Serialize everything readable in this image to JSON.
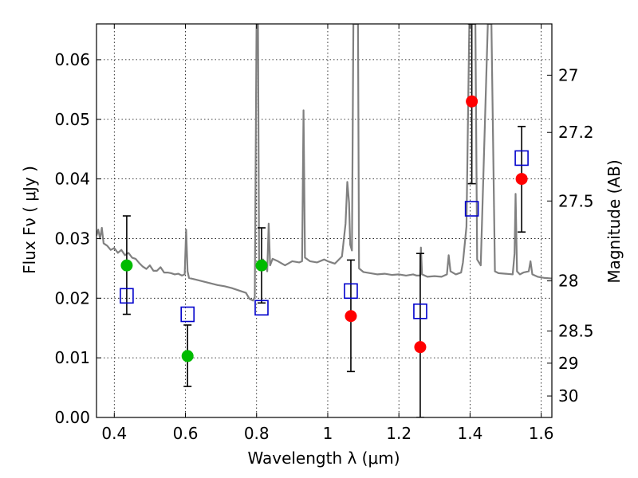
{
  "chart_data": {
    "type": "scatter",
    "xlabel": "Wavelength  λ (μm)",
    "ylabel": "Flux  Fν  ( μJy )",
    "y2label": "Magnitude (AB)",
    "xlim": [
      0.35,
      1.63
    ],
    "ylim": [
      0.0,
      0.066
    ],
    "grid": true,
    "x_ticks": [
      0.4,
      0.6,
      0.8,
      1.0,
      1.2,
      1.4,
      1.6
    ],
    "x_tick_labels": [
      "0.4",
      "0.6",
      "0.8",
      "1",
      "1.2",
      "1.4",
      "1.6"
    ],
    "y_ticks": [
      0.0,
      0.01,
      0.02,
      0.03,
      0.04,
      0.05,
      0.06
    ],
    "y_tick_labels": [
      "0.00",
      "0.01",
      "0.02",
      "0.03",
      "0.04",
      "0.05",
      "0.06"
    ],
    "y2_ticks": [
      {
        "label": "27",
        "flux": 0.0574
      },
      {
        "label": "27.2",
        "flux": 0.0478
      },
      {
        "label": "27.5",
        "flux": 0.0363
      },
      {
        "label": "28",
        "flux": 0.0229
      },
      {
        "label": "28.5",
        "flux": 0.0145
      },
      {
        "label": "29",
        "flux": 0.0091
      },
      {
        "label": "30",
        "flux": 0.0036
      }
    ],
    "colors": {
      "green": "#00bb00",
      "red": "#ff0000",
      "blue": "#0000cc",
      "model": "#808080",
      "errorbar": "#000000"
    },
    "series": [
      {
        "name": "observed-green",
        "marker": "circle",
        "color": "#00bb00",
        "points": [
          {
            "x": 0.435,
            "y": 0.0255,
            "ylo": 0.0173,
            "yhi": 0.0338
          },
          {
            "x": 0.606,
            "y": 0.0103,
            "ylo": 0.0052,
            "yhi": 0.0155
          },
          {
            "x": 0.814,
            "y": 0.0255,
            "ylo": 0.0192,
            "yhi": 0.0318
          }
        ]
      },
      {
        "name": "observed-red",
        "marker": "circle",
        "color": "#ff0000",
        "points": [
          {
            "x": 1.065,
            "y": 0.017,
            "ylo": 0.0077,
            "yhi": 0.0264
          },
          {
            "x": 1.26,
            "y": 0.0118,
            "ylo": 0.0,
            "yhi": 0.0275
          },
          {
            "x": 1.405,
            "y": 0.053,
            "ylo": 0.0392,
            "yhi": 0.066
          },
          {
            "x": 1.545,
            "y": 0.04,
            "ylo": 0.0311,
            "yhi": 0.0488
          }
        ]
      },
      {
        "name": "model-photometry",
        "marker": "square",
        "color": "#0000cc",
        "points": [
          {
            "x": 0.435,
            "y": 0.0204
          },
          {
            "x": 0.606,
            "y": 0.0173
          },
          {
            "x": 0.814,
            "y": 0.0184
          },
          {
            "x": 1.065,
            "y": 0.0212
          },
          {
            "x": 1.26,
            "y": 0.0178
          },
          {
            "x": 1.405,
            "y": 0.035
          },
          {
            "x": 1.545,
            "y": 0.0435
          }
        ]
      }
    ],
    "model_spectrum": [
      [
        0.35,
        0.0305
      ],
      [
        0.355,
        0.0315
      ],
      [
        0.36,
        0.03
      ],
      [
        0.365,
        0.0318
      ],
      [
        0.37,
        0.0292
      ],
      [
        0.38,
        0.0288
      ],
      [
        0.39,
        0.0281
      ],
      [
        0.4,
        0.0284
      ],
      [
        0.41,
        0.0276
      ],
      [
        0.42,
        0.0281
      ],
      [
        0.43,
        0.0272
      ],
      [
        0.44,
        0.0276
      ],
      [
        0.45,
        0.0268
      ],
      [
        0.46,
        0.0266
      ],
      [
        0.47,
        0.0259
      ],
      [
        0.48,
        0.0253
      ],
      [
        0.49,
        0.0249
      ],
      [
        0.5,
        0.0255
      ],
      [
        0.51,
        0.0246
      ],
      [
        0.52,
        0.0246
      ],
      [
        0.53,
        0.0252
      ],
      [
        0.54,
        0.0243
      ],
      [
        0.55,
        0.0243
      ],
      [
        0.56,
        0.0242
      ],
      [
        0.57,
        0.024
      ],
      [
        0.58,
        0.0241
      ],
      [
        0.59,
        0.0238
      ],
      [
        0.598,
        0.024
      ],
      [
        0.602,
        0.0315
      ],
      [
        0.606,
        0.0245
      ],
      [
        0.61,
        0.0234
      ],
      [
        0.63,
        0.0231
      ],
      [
        0.65,
        0.0228
      ],
      [
        0.67,
        0.0225
      ],
      [
        0.69,
        0.0222
      ],
      [
        0.71,
        0.022
      ],
      [
        0.73,
        0.0217
      ],
      [
        0.75,
        0.0213
      ],
      [
        0.77,
        0.0209
      ],
      [
        0.78,
        0.0199
      ],
      [
        0.79,
        0.0196
      ],
      [
        0.795,
        0.0202
      ],
      [
        0.8,
        0.066
      ],
      [
        0.804,
        0.066
      ],
      [
        0.807,
        0.0255
      ],
      [
        0.812,
        0.025
      ],
      [
        0.818,
        0.0265
      ],
      [
        0.825,
        0.0258
      ],
      [
        0.83,
        0.0245
      ],
      [
        0.834,
        0.0325
      ],
      [
        0.838,
        0.0255
      ],
      [
        0.845,
        0.0266
      ],
      [
        0.86,
        0.0262
      ],
      [
        0.88,
        0.0255
      ],
      [
        0.9,
        0.0262
      ],
      [
        0.92,
        0.026
      ],
      [
        0.928,
        0.0262
      ],
      [
        0.932,
        0.0515
      ],
      [
        0.936,
        0.0268
      ],
      [
        0.95,
        0.0262
      ],
      [
        0.97,
        0.026
      ],
      [
        0.99,
        0.0265
      ],
      [
        1.0,
        0.0262
      ],
      [
        1.02,
        0.0258
      ],
      [
        1.04,
        0.027
      ],
      [
        1.05,
        0.0325
      ],
      [
        1.055,
        0.0395
      ],
      [
        1.06,
        0.036
      ],
      [
        1.063,
        0.029
      ],
      [
        1.068,
        0.028
      ],
      [
        1.072,
        0.066
      ],
      [
        1.085,
        0.066
      ],
      [
        1.088,
        0.025
      ],
      [
        1.1,
        0.0244
      ],
      [
        1.12,
        0.0242
      ],
      [
        1.14,
        0.024
      ],
      [
        1.16,
        0.0241
      ],
      [
        1.18,
        0.0239
      ],
      [
        1.2,
        0.024
      ],
      [
        1.22,
        0.0238
      ],
      [
        1.24,
        0.024
      ],
      [
        1.25,
        0.0238
      ],
      [
        1.26,
        0.0238
      ],
      [
        1.262,
        0.0285
      ],
      [
        1.265,
        0.024
      ],
      [
        1.28,
        0.0236
      ],
      [
        1.3,
        0.0237
      ],
      [
        1.32,
        0.0236
      ],
      [
        1.335,
        0.024
      ],
      [
        1.34,
        0.0272
      ],
      [
        1.345,
        0.0245
      ],
      [
        1.36,
        0.024
      ],
      [
        1.375,
        0.0243
      ],
      [
        1.38,
        0.026
      ],
      [
        1.39,
        0.032
      ],
      [
        1.398,
        0.066
      ],
      [
        1.415,
        0.066
      ],
      [
        1.42,
        0.0265
      ],
      [
        1.43,
        0.0255
      ],
      [
        1.45,
        0.066
      ],
      [
        1.46,
        0.066
      ],
      [
        1.47,
        0.0245
      ],
      [
        1.48,
        0.0242
      ],
      [
        1.5,
        0.0241
      ],
      [
        1.52,
        0.024
      ],
      [
        1.525,
        0.0275
      ],
      [
        1.528,
        0.0375
      ],
      [
        1.532,
        0.0245
      ],
      [
        1.54,
        0.024
      ],
      [
        1.55,
        0.0243
      ],
      [
        1.565,
        0.0245
      ],
      [
        1.57,
        0.0262
      ],
      [
        1.575,
        0.024
      ],
      [
        1.59,
        0.0236
      ],
      [
        1.61,
        0.0234
      ],
      [
        1.63,
        0.0233
      ]
    ]
  }
}
